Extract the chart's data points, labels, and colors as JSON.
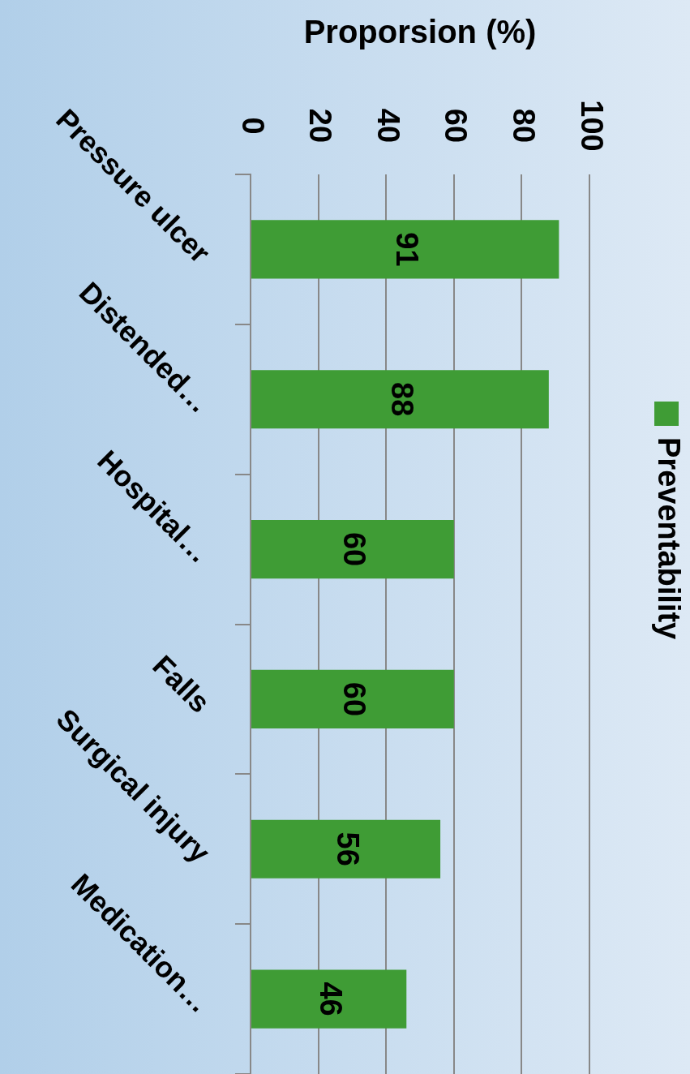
{
  "chart_data": {
    "type": "bar",
    "orientation": "horizontal",
    "xlabel": "Proporsion (%)",
    "categories": [
      "Pressure ulcer",
      "Distended…",
      "Hospital…",
      "Falls",
      "Surgical injury",
      "Medication…"
    ],
    "series": [
      {
        "name": "Preventability",
        "color": "#3f9c35",
        "values": [
          91,
          88,
          60,
          60,
          56,
          46
        ]
      }
    ],
    "xlim": [
      0,
      100
    ],
    "xticks": [
      0,
      20,
      40,
      60,
      80,
      100
    ],
    "grid": "x",
    "legend": "right",
    "data_labels": true
  }
}
